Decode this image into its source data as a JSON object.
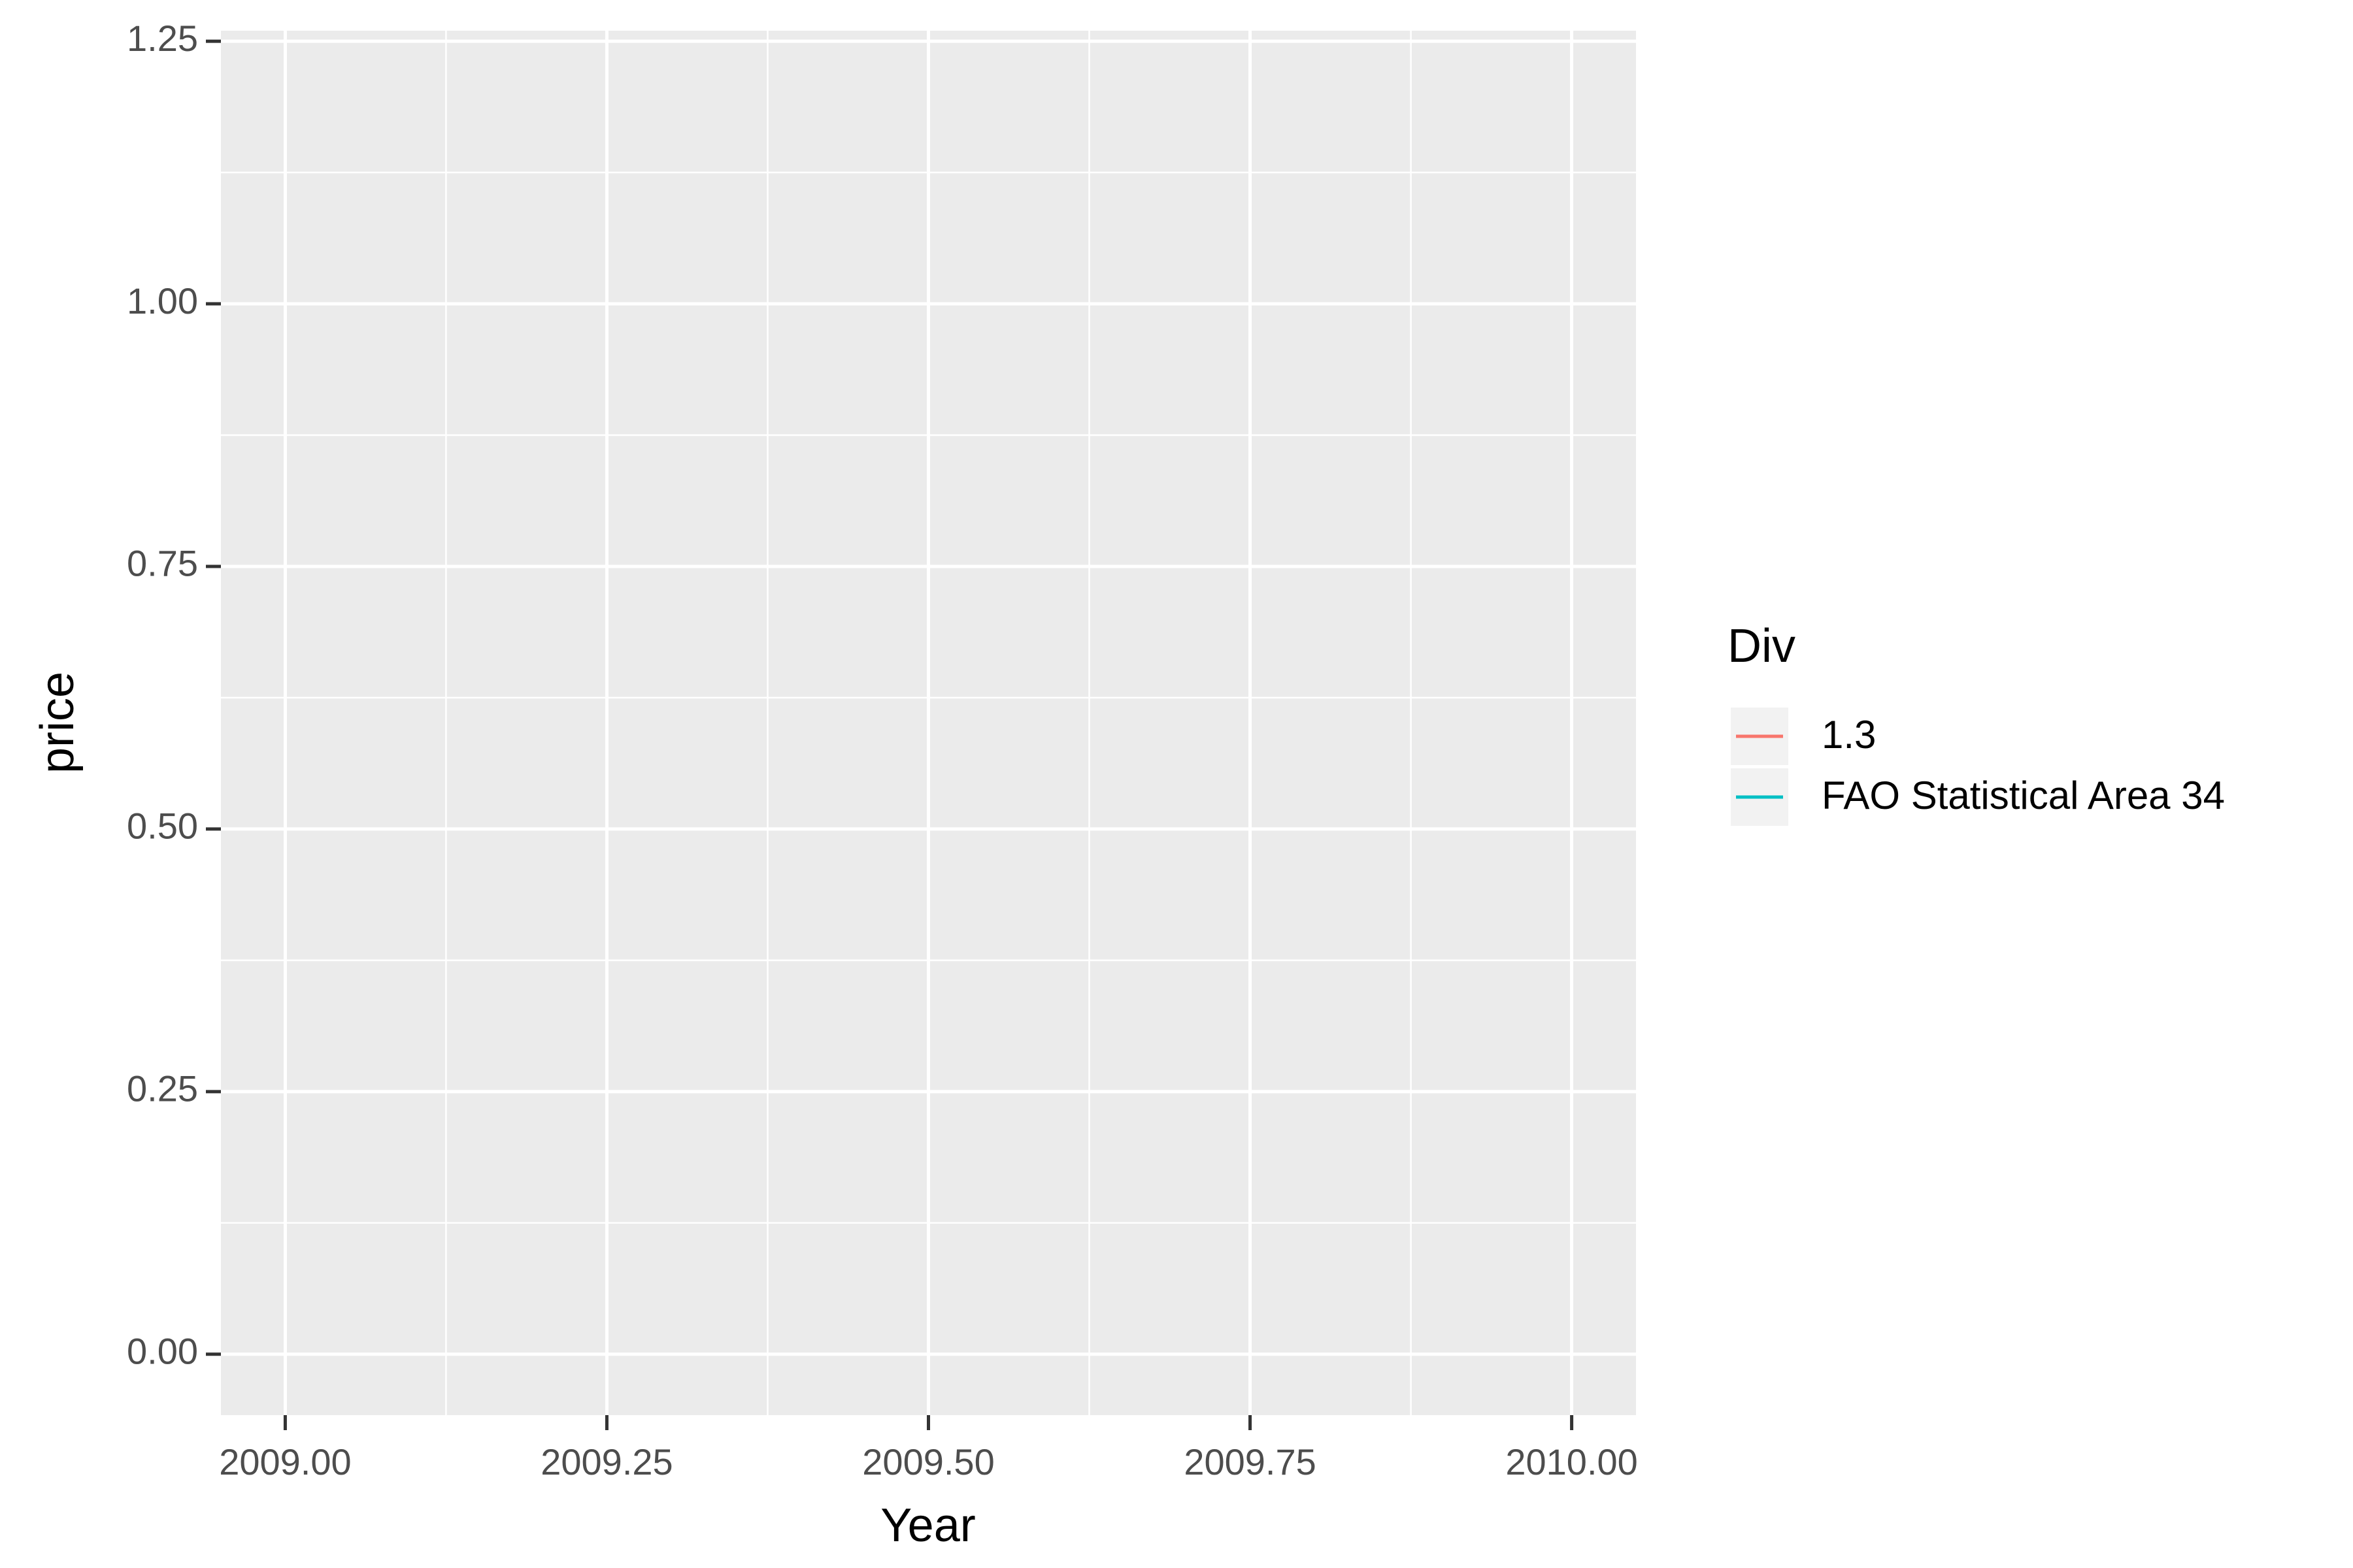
{
  "chart_data": {
    "type": "line",
    "x_label": "Year",
    "y_label": "price",
    "x": [],
    "series": [
      {
        "name": "1.3",
        "color": "#f8766d",
        "values": []
      },
      {
        "name": "FAO Statistical Area 34",
        "color": "#00bfc4",
        "values": []
      }
    ],
    "legend_title": "Div",
    "legend": "right",
    "xlim": [
      2008.95,
      2010.05
    ],
    "xticks": [
      {
        "value": 2009,
        "label": "2009.00"
      },
      2009.25,
      {
        "value": 2009.5,
        "label": "2009.50"
      },
      2009.75,
      {
        "value": 2010,
        "label": "2010.00"
      }
    ],
    "ylim": [
      -0.058,
      1.26
    ],
    "yticks": [
      {
        "value": 0,
        "label": "0.00"
      },
      0.25,
      {
        "value": 0.5,
        "label": "0.50"
      },
      0.75,
      {
        "value": 1,
        "label": "1.00"
      },
      1.25
    ],
    "grid": true,
    "minor_grid": true
  }
}
